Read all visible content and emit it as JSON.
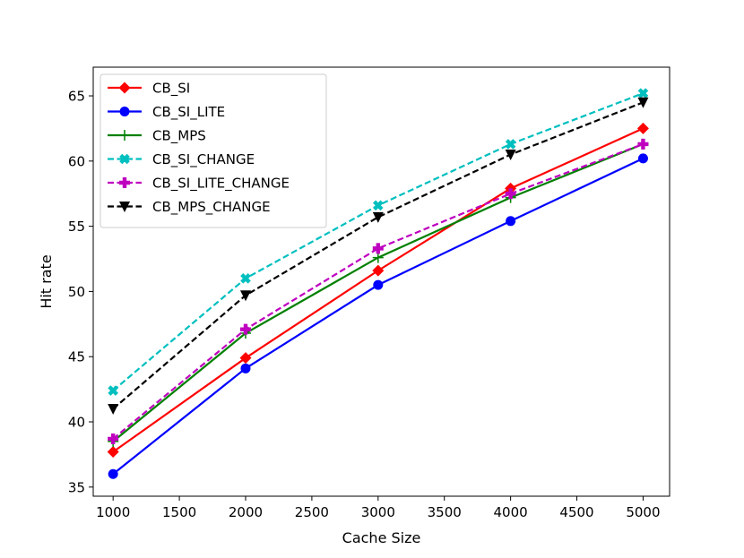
{
  "chart_data": {
    "type": "line",
    "title": "",
    "xlabel": "Cache Size",
    "ylabel": "Hit rate",
    "x": [
      1000,
      2000,
      3000,
      4000,
      5000
    ],
    "xlim": [
      850,
      5200
    ],
    "ylim": [
      34.3,
      67.2
    ],
    "xticks": [
      1000,
      1500,
      2000,
      2500,
      3000,
      3500,
      4000,
      4500,
      5000
    ],
    "yticks": [
      35,
      40,
      45,
      50,
      55,
      60,
      65
    ],
    "grid": false,
    "legend_position": "top-left",
    "series": [
      {
        "name": "CB_SI",
        "values": [
          37.7,
          44.9,
          51.6,
          57.9,
          62.5
        ],
        "color": "#ff0000",
        "linestyle": "solid",
        "marker": "diamond"
      },
      {
        "name": "CB_SI_LITE",
        "values": [
          36.0,
          44.1,
          50.5,
          55.4,
          60.2
        ],
        "color": "#0000ff",
        "linestyle": "solid",
        "marker": "circle"
      },
      {
        "name": "CB_MPS",
        "values": [
          38.5,
          46.8,
          52.6,
          57.2,
          61.3
        ],
        "color": "#008000",
        "linestyle": "solid",
        "marker": "plus"
      },
      {
        "name": "CB_SI_CHANGE",
        "values": [
          42.4,
          51.0,
          56.6,
          61.3,
          65.2
        ],
        "color": "#00bfbf",
        "linestyle": "dashed",
        "marker": "x-filled"
      },
      {
        "name": "CB_SI_LITE_CHANGE",
        "values": [
          38.7,
          47.1,
          53.3,
          57.5,
          61.3
        ],
        "color": "#bf00bf",
        "linestyle": "dashed",
        "marker": "plus-filled"
      },
      {
        "name": "CB_MPS_CHANGE",
        "values": [
          41.0,
          49.7,
          55.7,
          60.5,
          64.5
        ],
        "color": "#000000",
        "linestyle": "dashed",
        "marker": "triangle-down"
      }
    ]
  }
}
